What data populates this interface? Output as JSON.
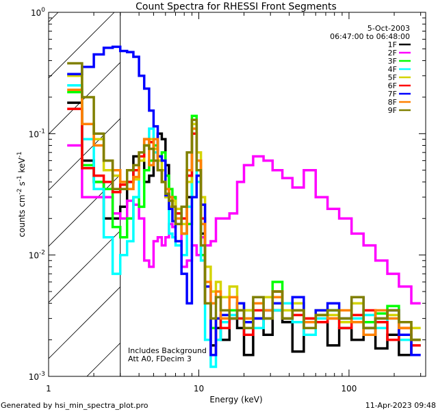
{
  "chart_data": {
    "type": "line",
    "title": "Count Spectra for RHESSI Front Segments",
    "xlabel": "Energy (keV)",
    "ylabel": "counts cm-2 s-1 keV-1",
    "xscale": "log",
    "yscale": "log",
    "xlim": [
      1,
      324
    ],
    "ylim": [
      0.001,
      1
    ],
    "x_tick_labels": [
      "1",
      "10",
      "100"
    ],
    "x_ticks": [
      1,
      10,
      100
    ],
    "y_ticks": [
      1,
      0.1,
      0.01,
      0.001
    ],
    "y_tick_labels": [
      {
        "base": "10",
        "exp": "0"
      },
      {
        "base": "10",
        "exp": "-1"
      },
      {
        "base": "10",
        "exp": "-2"
      },
      {
        "base": "10",
        "exp": "-3"
      }
    ],
    "shaded_region": [
      1,
      3
    ],
    "legend_position": "top-right",
    "date": "5-Oct-2003",
    "time_range": "06:47:00 to 06:48:00",
    "annotations": [
      "Includes Background",
      "Att A0, FDecim 3"
    ],
    "energy_edges": [
      1.33,
      1.67,
      2,
      2.33,
      2.67,
      3,
      3.33,
      3.67,
      4,
      4.33,
      4.67,
      5,
      5.33,
      5.67,
      6,
      6.33,
      6.67,
      7,
      7.67,
      8.33,
      9,
      9.67,
      10.33,
      11,
      12,
      13,
      14,
      16,
      18,
      20,
      23,
      27,
      31,
      36,
      42,
      50,
      60,
      72,
      86,
      104,
      125,
      150,
      180,
      215,
      260,
      300
    ],
    "series": [
      {
        "name": "1F",
        "color": "#000000",
        "values": [
          0.18,
          0.06,
          0.04,
          0.02,
          0.02,
          0.025,
          0.04,
          0.065,
          0.06,
          0.04,
          0.045,
          0.06,
          0.1,
          0.09,
          0.055,
          0.03,
          0.03,
          0.02,
          0.015,
          0.03,
          0.1,
          0.06,
          0.015,
          0.004,
          0.0018,
          0.0025,
          0.002,
          0.003,
          0.0025,
          0.0015,
          0.003,
          0.0022,
          0.0035,
          0.0028,
          0.0016,
          0.003,
          0.0028,
          0.0018,
          0.0025,
          0.002,
          0.0028,
          0.0017,
          0.0022,
          0.0015,
          0.0018
        ]
      },
      {
        "name": "2F",
        "color": "#ff00ff",
        "values": [
          0.08,
          0.03,
          0.03,
          0.03,
          0.022,
          0.02,
          0.028,
          0.026,
          0.02,
          0.009,
          0.008,
          0.013,
          0.014,
          0.012,
          0.014,
          0.018,
          0.017,
          0.02,
          0.008,
          0.009,
          0.012,
          0.01,
          0.014,
          0.012,
          0.013,
          0.02,
          0.02,
          0.022,
          0.04,
          0.055,
          0.065,
          0.06,
          0.05,
          0.043,
          0.036,
          0.05,
          0.03,
          0.024,
          0.02,
          0.015,
          0.012,
          0.009,
          0.007,
          0.0055,
          0.004
        ]
      },
      {
        "name": "3F",
        "color": "#00ff00",
        "values": [
          0.22,
          0.055,
          0.04,
          0.035,
          0.017,
          0.014,
          0.02,
          0.03,
          0.025,
          0.05,
          0.06,
          0.08,
          0.065,
          0.07,
          0.045,
          0.035,
          0.03,
          0.022,
          0.015,
          0.018,
          0.14,
          0.05,
          0.01,
          0.004,
          0.0025,
          0.003,
          0.0028,
          0.0035,
          0.004,
          0.003,
          0.004,
          0.0045,
          0.006,
          0.003,
          0.004,
          0.0028,
          0.0032,
          0.0035,
          0.003,
          0.004,
          0.0028,
          0.0033,
          0.0038,
          0.0022,
          0.002
        ]
      },
      {
        "name": "4F",
        "color": "#00ffff",
        "values": [
          0.25,
          0.09,
          0.035,
          0.014,
          0.007,
          0.01,
          0.013,
          0.03,
          0.06,
          0.08,
          0.11,
          0.07,
          0.05,
          0.04,
          0.03,
          0.015,
          0.014,
          0.012,
          0.01,
          0.025,
          0.12,
          0.04,
          0.009,
          0.002,
          0.0012,
          0.002,
          0.0028,
          0.0032,
          0.003,
          0.0035,
          0.0025,
          0.003,
          0.0035,
          0.004,
          0.0028,
          0.0022,
          0.003,
          0.0035,
          0.0025,
          0.003,
          0.0032,
          0.0025,
          0.003,
          0.002,
          0.0018
        ]
      },
      {
        "name": "5F",
        "color": "#d4d400",
        "values": [
          0.3,
          0.12,
          0.09,
          0.05,
          0.045,
          0.04,
          0.035,
          0.042,
          0.06,
          0.08,
          0.09,
          0.075,
          0.06,
          0.05,
          0.03,
          0.025,
          0.028,
          0.024,
          0.018,
          0.04,
          0.12,
          0.07,
          0.03,
          0.008,
          0.005,
          0.006,
          0.0045,
          0.0055,
          0.004,
          0.0035,
          0.004,
          0.0045,
          0.005,
          0.0035,
          0.004,
          0.003,
          0.0035,
          0.0032,
          0.0028,
          0.004,
          0.0025,
          0.003,
          0.0032,
          0.0028,
          0.0025
        ]
      },
      {
        "name": "6F",
        "color": "#ff0000",
        "values": [
          0.16,
          0.052,
          0.045,
          0.04,
          0.033,
          0.038,
          0.04,
          0.05,
          0.065,
          0.09,
          0.085,
          0.06,
          0.05,
          0.04,
          0.035,
          0.03,
          0.025,
          0.022,
          0.02,
          0.045,
          0.1,
          0.05,
          0.02,
          0.004,
          0.0015,
          0.003,
          0.0025,
          0.003,
          0.003,
          0.0022,
          0.0035,
          0.003,
          0.005,
          0.003,
          0.0032,
          0.003,
          0.0028,
          0.003,
          0.0025,
          0.0032,
          0.0035,
          0.0028,
          0.002,
          0.0025,
          0.0018
        ]
      },
      {
        "name": "7F",
        "color": "#0000ff",
        "values": [
          0.31,
          0.355,
          0.45,
          0.51,
          0.52,
          0.48,
          0.47,
          0.43,
          0.3,
          0.235,
          0.155,
          0.115,
          0.065,
          0.06,
          0.031,
          0.024,
          0.019,
          0.013,
          0.007,
          0.004,
          0.03,
          0.045,
          0.026,
          0.0055,
          0.0015,
          0.003,
          0.0032,
          0.003,
          0.004,
          0.0028,
          0.003,
          0.0035,
          0.004,
          0.003,
          0.0045,
          0.0028,
          0.0035,
          0.004,
          0.003,
          0.0045,
          0.0025,
          0.003,
          0.0035,
          0.0022,
          0.0015
        ]
      },
      {
        "name": "8F",
        "color": "#ff8000",
        "values": [
          0.23,
          0.12,
          0.08,
          0.06,
          0.05,
          0.04,
          0.035,
          0.044,
          0.07,
          0.09,
          0.055,
          0.09,
          0.05,
          0.04,
          0.035,
          0.03,
          0.025,
          0.02,
          0.015,
          0.05,
          0.11,
          0.06,
          0.018,
          0.006,
          0.004,
          0.005,
          0.003,
          0.0045,
          0.0035,
          0.003,
          0.004,
          0.0035,
          0.0045,
          0.003,
          0.0035,
          0.0028,
          0.0032,
          0.003,
          0.0035,
          0.0028,
          0.0022,
          0.0035,
          0.003,
          0.0025,
          0.002
        ]
      },
      {
        "name": "9F",
        "color": "#808000",
        "values": [
          0.38,
          0.2,
          0.1,
          0.06,
          0.035,
          0.035,
          0.05,
          0.055,
          0.07,
          0.08,
          0.075,
          0.06,
          0.05,
          0.04,
          0.032,
          0.028,
          0.025,
          0.018,
          0.025,
          0.07,
          0.13,
          0.05,
          0.012,
          0.004,
          0.003,
          0.0045,
          0.0035,
          0.003,
          0.0035,
          0.0025,
          0.0045,
          0.003,
          0.005,
          0.003,
          0.0035,
          0.0025,
          0.0032,
          0.0035,
          0.003,
          0.0045,
          0.0025,
          0.003,
          0.0035,
          0.0028,
          0.002
        ]
      }
    ]
  },
  "footer": {
    "generated_by": "Generated by hsi_min_spectra_plot.pro",
    "timestamp": "11-Apr-2023 09:48"
  }
}
